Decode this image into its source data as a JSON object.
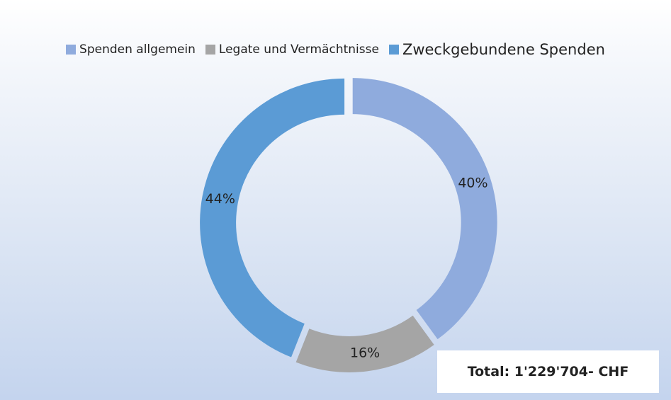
{
  "chart_data": {
    "type": "donut",
    "categories": [
      "Spenden allgemein",
      "Legate und Vermächtnisse",
      "Zweckgebundene Spenden"
    ],
    "values": [
      40,
      16,
      44
    ],
    "value_labels": [
      "40%",
      "16%",
      "44%"
    ],
    "colors": [
      "#8fabdd",
      "#a5a5a5",
      "#5b9bd5"
    ],
    "annotation": "Total: 1'229'704- CHF"
  }
}
